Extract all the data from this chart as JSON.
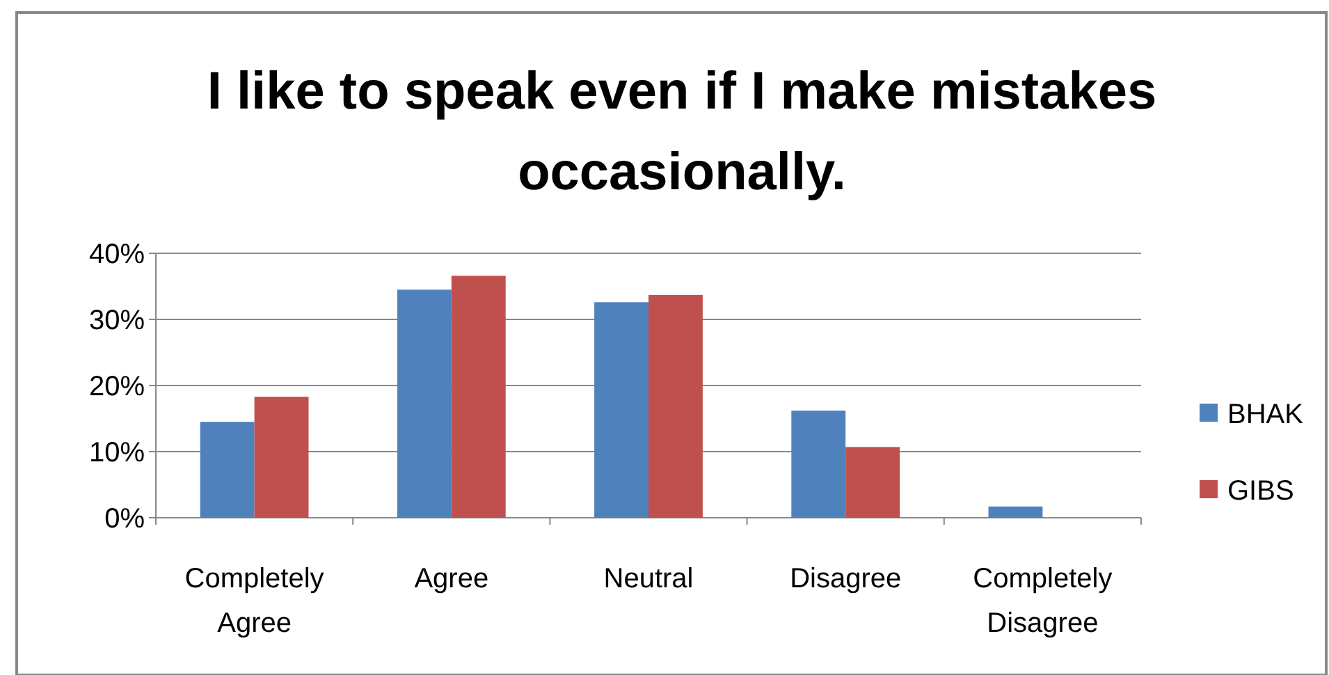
{
  "chart_data": {
    "type": "bar",
    "title": "I like to speak even if I make mistakes occasionally.",
    "categories": [
      "Completely Agree",
      "Agree",
      "Neutral",
      "Disagree",
      "Completely Disagree"
    ],
    "series": [
      {
        "name": "BHAK",
        "color": "#4f81bd",
        "values": [
          14.5,
          34.5,
          32.6,
          16.2,
          1.7
        ]
      },
      {
        "name": "GIBS",
        "color": "#c0504d",
        "values": [
          18.3,
          36.6,
          33.7,
          10.7,
          0
        ]
      }
    ],
    "ylim": [
      0,
      40
    ],
    "yticks": [
      {
        "value": 0,
        "label": "0%"
      },
      {
        "value": 10,
        "label": "10%"
      },
      {
        "value": 20,
        "label": "20%"
      },
      {
        "value": 30,
        "label": "30%"
      },
      {
        "value": 40,
        "label": "40%"
      }
    ],
    "grid": "y",
    "legend": "right"
  }
}
